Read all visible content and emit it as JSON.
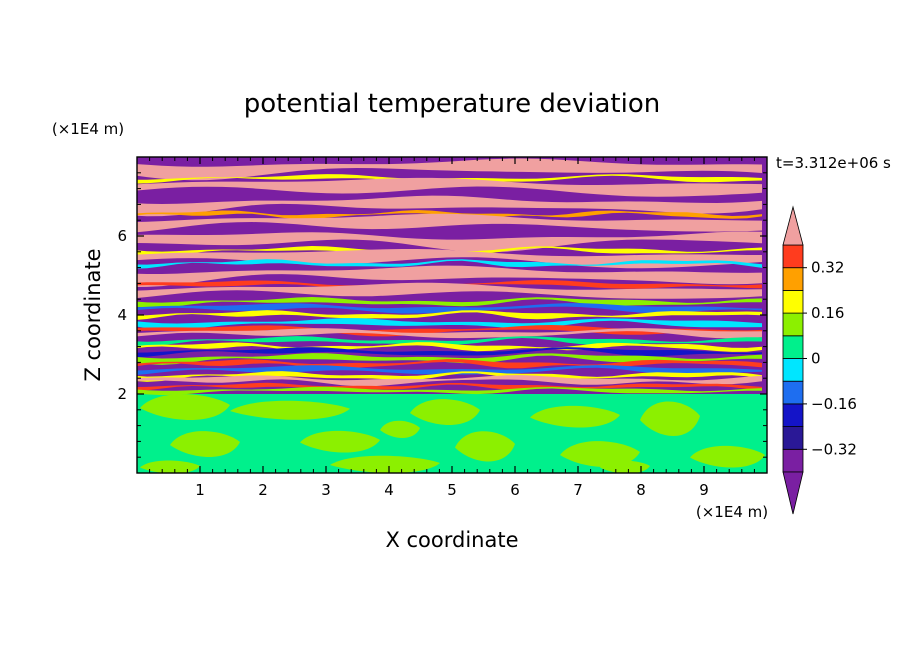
{
  "chart_data": {
    "type": "heatmap",
    "title": "potential temperature deviation",
    "time_label": "t=3.312e+06 s",
    "xlabel": "X coordinate",
    "ylabel": "Z coordinate",
    "x_unit": "(×1E4 m)",
    "y_unit": "(×1E4 m)",
    "xlim": [
      0,
      10
    ],
    "ylim": [
      0,
      8
    ],
    "x_ticks": [
      1,
      2,
      3,
      4,
      5,
      6,
      7,
      8,
      9
    ],
    "y_ticks": [
      2,
      4,
      6
    ],
    "colorbar": {
      "levels": [
        -0.4,
        -0.32,
        -0.24,
        -0.16,
        -0.08,
        0,
        0.08,
        0.16,
        0.24,
        0.32,
        0.4
      ],
      "tick_values": [
        -0.32,
        -0.16,
        0,
        0.16,
        0.32
      ],
      "tick_labels": [
        "−0.32",
        "−0.16",
        "0",
        "0.16",
        "0.32"
      ],
      "colors": [
        "#7a1fa2",
        "#2a1896",
        "#1414c8",
        "#1e6ef0",
        "#00e6ff",
        "#00f08c",
        "#8cf000",
        "#ffff00",
        "#ffa000",
        "#ff3c1e",
        "#f0a0a0"
      ],
      "extend": "both"
    },
    "regions": [
      {
        "name": "lower layer",
        "z_range": [
          0,
          2
        ],
        "values": "near 0 (green / yellow-green)"
      },
      {
        "name": "upper layer",
        "z_range": [
          2,
          8
        ],
        "values": "alternating horizontal bands, approx. −0.4 to +0.4"
      }
    ]
  }
}
